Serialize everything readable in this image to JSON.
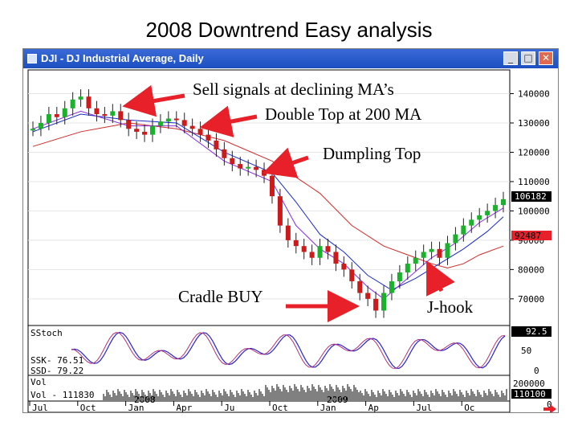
{
  "slide": {
    "title": "2008 Downtrend Easy analysis"
  },
  "window": {
    "title": "DJI - DJ Industrial Average, Daily",
    "buttons": {
      "minimize": "_",
      "maximize": "□",
      "close": "✕"
    }
  },
  "annotations": [
    {
      "id": "sell",
      "text": "Sell signals at declining MA’s"
    },
    {
      "id": "double",
      "text": "Double Top at 200 MA"
    },
    {
      "id": "dumpling",
      "text": "Dumpling Top"
    },
    {
      "id": "cradle",
      "text": "Cradle BUY"
    },
    {
      "id": "jhook",
      "text": "J-hook"
    }
  ],
  "colors": {
    "arrow": "#e8202a",
    "price_up": "#19b22a",
    "price_down": "#cc1b1b",
    "ma_fast": "#8a2be2",
    "ma_mid": "#1a2cc8",
    "ma_long": "#d22828",
    "stoch_k": "#2a26c8",
    "stoch_d": "#b0307a",
    "label_box": "#000000",
    "label_red": "#e8202a"
  },
  "chart_data": {
    "type": "line",
    "title": "DJI - DJ Industrial Average, Daily",
    "x_ticks": [
      "Jul",
      "Oct",
      "Jan",
      "Apr",
      "Ju",
      "Oct",
      "Jan",
      "Ap",
      "Jul",
      "Oc"
    ],
    "year_labels": [
      "2008",
      "2009"
    ],
    "y_ticks": [
      140000,
      130000,
      120000,
      110000,
      100000,
      90000,
      80000,
      70000
    ],
    "ylim": [
      62000,
      147000
    ],
    "price_labels": {
      "last": "106182",
      "ma": "92487"
    },
    "price": {
      "name": "",
      "x": [
        0,
        10,
        20,
        30,
        40,
        50,
        60,
        70,
        80,
        90,
        100,
        110,
        120,
        130,
        140,
        150,
        160,
        170,
        180,
        190,
        200,
        210,
        220,
        230,
        240,
        250,
        260,
        270,
        280,
        290,
        300,
        310,
        320,
        330,
        340,
        350,
        360,
        370,
        380,
        390,
        400,
        410,
        420,
        430,
        440,
        450,
        460,
        470,
        480,
        490,
        500,
        510,
        520,
        530,
        540,
        550,
        560,
        570,
        580,
        590
      ],
      "values": [
        128000,
        130000,
        133000,
        132000,
        135000,
        138000,
        139000,
        135000,
        133000,
        132500,
        134000,
        131000,
        128000,
        127000,
        126000,
        129000,
        130500,
        131500,
        131000,
        129000,
        128000,
        126000,
        124000,
        121000,
        118000,
        116000,
        114500,
        115000,
        114000,
        112000,
        105000,
        95000,
        90000,
        88000,
        86000,
        84000,
        88000,
        86000,
        82000,
        80000,
        76000,
        72000,
        70000,
        66000,
        72000,
        76000,
        79000,
        82000,
        84000,
        86000,
        87000,
        84000,
        89000,
        92000,
        95000,
        97000,
        98500,
        100000,
        102000,
        104000
      ]
    },
    "ma_fast": {
      "name": "",
      "x": [
        0,
        60,
        120,
        180,
        240,
        300,
        330,
        360,
        390,
        420,
        440,
        470,
        500,
        530,
        560,
        590
      ],
      "values": [
        128000,
        134000,
        129000,
        129000,
        117000,
        110000,
        95000,
        87000,
        82000,
        74000,
        70000,
        77000,
        84000,
        89000,
        96000,
        101000
      ]
    },
    "ma_mid": {
      "name": "",
      "x": [
        0,
        60,
        120,
        180,
        240,
        300,
        330,
        360,
        390,
        420,
        450,
        480,
        510,
        540,
        570,
        590
      ],
      "values": [
        127000,
        133000,
        131000,
        130000,
        120000,
        113000,
        103000,
        92000,
        86000,
        78000,
        73000,
        77000,
        82000,
        87000,
        93000,
        98000
      ]
    },
    "ma_long": {
      "name": "",
      "x": [
        0,
        60,
        120,
        180,
        240,
        300,
        360,
        400,
        440,
        480,
        500,
        520,
        540,
        560,
        590
      ],
      "values": [
        122000,
        127000,
        130000,
        128000,
        124000,
        117000,
        106000,
        95000,
        88000,
        84000,
        82000,
        80500,
        82000,
        85000,
        88000
      ]
    },
    "stochastics": {
      "label": "SStoch",
      "readouts": [
        "SSK- 76.51",
        "SSD- 79.22"
      ],
      "axis_ticks": [
        "50",
        "0"
      ],
      "last_value": "92.5",
      "ylim": [
        0,
        100
      ]
    },
    "volume": {
      "label": "Vol",
      "readout": "Vol - 111830",
      "axis_ticks": [
        "200000",
        "0"
      ],
      "last_value": "110100"
    }
  }
}
